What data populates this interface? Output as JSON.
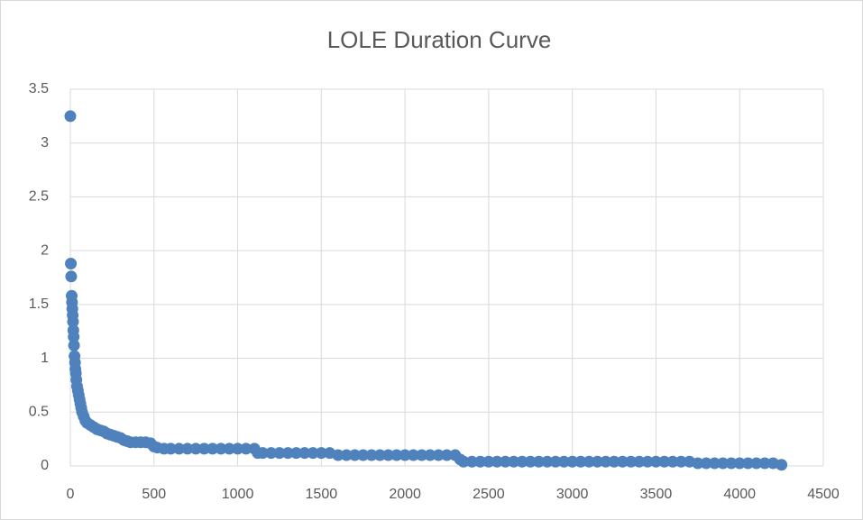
{
  "chart_data": {
    "type": "scatter",
    "title": "LOLE Duration Curve",
    "x": [
      0,
      3,
      5,
      8,
      10,
      12,
      14,
      16,
      18,
      20,
      22,
      25,
      28,
      30,
      33,
      36,
      40,
      45,
      50,
      55,
      60,
      65,
      70,
      80,
      90,
      100,
      120,
      140,
      160,
      180,
      200,
      220,
      240,
      260,
      280,
      300,
      320,
      340,
      360,
      390,
      420,
      450,
      480,
      500,
      520,
      560,
      600,
      650,
      700,
      750,
      800,
      850,
      900,
      950,
      1000,
      1050,
      1100,
      1120,
      1150,
      1200,
      1250,
      1300,
      1350,
      1400,
      1450,
      1500,
      1550,
      1600,
      1650,
      1700,
      1750,
      1800,
      1850,
      1900,
      1950,
      2000,
      2050,
      2100,
      2150,
      2200,
      2250,
      2300,
      2330,
      2350,
      2400,
      2450,
      2500,
      2550,
      2600,
      2650,
      2700,
      2750,
      2800,
      2850,
      2900,
      2950,
      3000,
      3050,
      3100,
      3150,
      3200,
      3250,
      3300,
      3350,
      3400,
      3450,
      3500,
      3550,
      3600,
      3650,
      3700,
      3750,
      3800,
      3850,
      3900,
      3950,
      4000,
      4050,
      4100,
      4150,
      4200,
      4250
    ],
    "values": [
      3.25,
      1.88,
      1.76,
      1.58,
      1.52,
      1.46,
      1.4,
      1.34,
      1.26,
      1.2,
      1.12,
      1.02,
      0.96,
      0.9,
      0.86,
      0.8,
      0.74,
      0.7,
      0.66,
      0.62,
      0.58,
      0.54,
      0.5,
      0.46,
      0.42,
      0.4,
      0.38,
      0.36,
      0.34,
      0.33,
      0.32,
      0.3,
      0.29,
      0.28,
      0.27,
      0.26,
      0.24,
      0.23,
      0.22,
      0.22,
      0.22,
      0.22,
      0.21,
      0.18,
      0.17,
      0.16,
      0.16,
      0.16,
      0.16,
      0.16,
      0.16,
      0.16,
      0.16,
      0.16,
      0.16,
      0.16,
      0.16,
      0.12,
      0.12,
      0.12,
      0.12,
      0.12,
      0.12,
      0.12,
      0.12,
      0.12,
      0.12,
      0.1,
      0.1,
      0.1,
      0.1,
      0.1,
      0.1,
      0.1,
      0.1,
      0.1,
      0.1,
      0.1,
      0.1,
      0.1,
      0.1,
      0.1,
      0.06,
      0.04,
      0.04,
      0.04,
      0.04,
      0.04,
      0.04,
      0.04,
      0.04,
      0.04,
      0.04,
      0.04,
      0.04,
      0.04,
      0.04,
      0.04,
      0.04,
      0.04,
      0.04,
      0.04,
      0.04,
      0.04,
      0.04,
      0.04,
      0.04,
      0.04,
      0.04,
      0.04,
      0.04,
      0.025,
      0.025,
      0.025,
      0.025,
      0.025,
      0.025,
      0.025,
      0.025,
      0.025,
      0.025,
      0.01
    ],
    "color": "#4f81bd",
    "xlim": [
      0,
      4500
    ],
    "xticks": [
      0,
      500,
      1000,
      1500,
      2000,
      2500,
      3000,
      3500,
      4000,
      4500
    ],
    "ylim": [
      0,
      3.5
    ],
    "yticks": [
      0,
      0.5,
      1,
      1.5,
      2,
      2.5,
      3,
      3.5
    ],
    "grid": true
  }
}
